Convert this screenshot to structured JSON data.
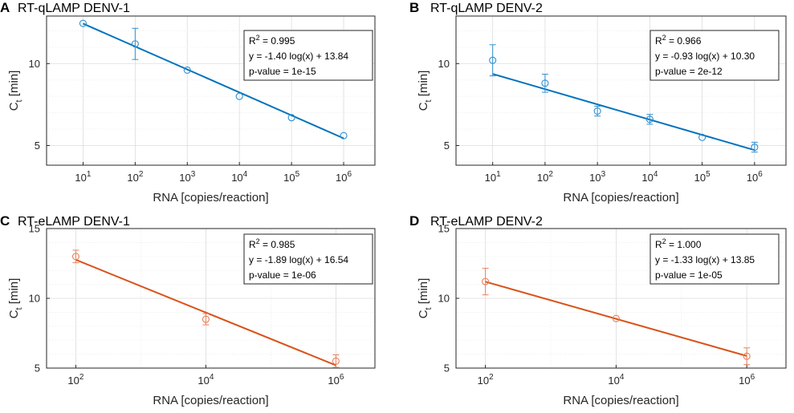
{
  "palette": {
    "blue": "#0072BD",
    "blue_marker": "#2E8FD0",
    "orange": "#D95319",
    "orange_marker": "#E8805A"
  },
  "chart_data": [
    {
      "panel": "A",
      "type": "scatter",
      "title": "RT-qLAMP DENV-1",
      "xlabel": "RNA [copies/reaction]",
      "ylabel": "C",
      "ylabel_sub": "t",
      "ylabel_unit": " [min]",
      "xscale": "log",
      "xlim_exp": [
        0.3,
        6.6
      ],
      "ylim": [
        3.8,
        12.9
      ],
      "x_tick_exps": [
        1,
        2,
        3,
        4,
        5,
        6
      ],
      "y_ticks": [
        5,
        10
      ],
      "color": "blue",
      "points": [
        {
          "x_exp": 1,
          "y": 12.45,
          "err": 0
        },
        {
          "x_exp": 2,
          "y": 11.2,
          "err": 0.95
        },
        {
          "x_exp": 3,
          "y": 9.6,
          "err": 0
        },
        {
          "x_exp": 4,
          "y": 8.0,
          "err": 0
        },
        {
          "x_exp": 5,
          "y": 6.7,
          "err": 0
        },
        {
          "x_exp": 6,
          "y": 5.6,
          "err": 0
        }
      ],
      "fit": {
        "slope": -1.4,
        "intercept": 13.84
      },
      "stats": {
        "r2_value": " = 0.995",
        "equation": "y = -1.40 log(x) + 13.84",
        "pvalue": "p-value = 1e-15"
      }
    },
    {
      "panel": "B",
      "type": "scatter",
      "title": "RT-qLAMP DENV-2",
      "xlabel": "RNA [copies/reaction]",
      "ylabel": "C",
      "ylabel_sub": "t",
      "ylabel_unit": " [min]",
      "xscale": "log",
      "xlim_exp": [
        0.3,
        6.6
      ],
      "ylim": [
        3.8,
        12.9
      ],
      "x_tick_exps": [
        1,
        2,
        3,
        4,
        5,
        6
      ],
      "y_ticks": [
        5,
        10
      ],
      "color": "blue",
      "points": [
        {
          "x_exp": 1,
          "y": 10.2,
          "err": 0.95
        },
        {
          "x_exp": 2,
          "y": 8.8,
          "err": 0.55
        },
        {
          "x_exp": 3,
          "y": 7.1,
          "err": 0.3
        },
        {
          "x_exp": 4,
          "y": 6.6,
          "err": 0.3
        },
        {
          "x_exp": 5,
          "y": 5.5,
          "err": 0
        },
        {
          "x_exp": 6,
          "y": 4.9,
          "err": 0.3
        }
      ],
      "fit": {
        "slope": -0.93,
        "intercept": 10.3
      },
      "stats": {
        "r2_value": " = 0.966",
        "equation": "y = -0.93 log(x) + 10.30",
        "pvalue": "p-value = 2e-12"
      }
    },
    {
      "panel": "C",
      "type": "scatter",
      "title": "RT-eLAMP DENV-1",
      "xlabel": "RNA [copies/reaction]",
      "ylabel": "C",
      "ylabel_sub": "t",
      "ylabel_unit": " [min]",
      "xscale": "log",
      "xlim_exp": [
        1.55,
        6.6
      ],
      "ylim": [
        5,
        15
      ],
      "x_tick_exps": [
        2,
        4,
        6
      ],
      "y_ticks": [
        5,
        10,
        15
      ],
      "color": "orange",
      "points": [
        {
          "x_exp": 2,
          "y": 13.0,
          "err": 0.45
        },
        {
          "x_exp": 4,
          "y": 8.5,
          "err": 0.4
        },
        {
          "x_exp": 6,
          "y": 5.5,
          "err": 0.45
        }
      ],
      "fit": {
        "slope": -1.89,
        "intercept": 16.54
      },
      "stats": {
        "r2_value": " = 0.985",
        "equation": "y = -1.89 log(x) + 16.54",
        "pvalue": "p-value = 1e-06"
      }
    },
    {
      "panel": "D",
      "type": "scatter",
      "title": "RT-eLAMP DENV-2",
      "xlabel": "RNA [copies/reaction]",
      "ylabel": "C",
      "ylabel_sub": "t",
      "ylabel_unit": " [min]",
      "xscale": "log",
      "xlim_exp": [
        1.55,
        6.6
      ],
      "ylim": [
        5,
        15
      ],
      "x_tick_exps": [
        2,
        4,
        6
      ],
      "y_ticks": [
        5,
        10,
        15
      ],
      "color": "orange",
      "points": [
        {
          "x_exp": 2,
          "y": 11.2,
          "err": 0.95
        },
        {
          "x_exp": 4,
          "y": 8.55,
          "err": 0
        },
        {
          "x_exp": 6,
          "y": 5.85,
          "err": 0.6
        }
      ],
      "fit": {
        "slope": -1.33,
        "intercept": 13.85
      },
      "stats": {
        "r2_value": " = 1.000",
        "equation": "y = -1.33 log(x) + 13.85",
        "pvalue": "p-value = 1e-05"
      }
    }
  ]
}
